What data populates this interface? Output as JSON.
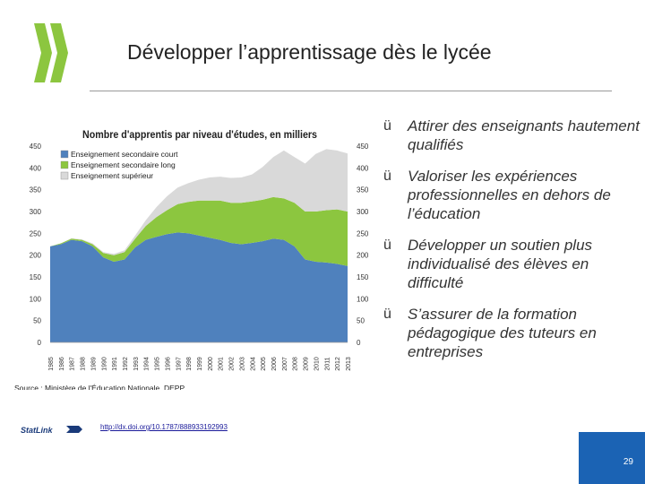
{
  "slide": {
    "title": "Développer l’apprentissage dès le lycée",
    "page_number": "29",
    "statlink_url": "http://dx.doi.org/10.1787/888933192993",
    "statlink_logo_text": "StatLink"
  },
  "colors": {
    "logo_green": "#8cc63f",
    "series_court": "#4f81bd",
    "series_long": "#8cc63f",
    "series_superieur": "#d9d9d9",
    "badge_blue": "#1b63b4"
  },
  "bullets": [
    "Attirer des enseignants hautement qualifiés",
    "Valoriser les expériences professionnelles en dehors de l’éducation",
    "Développer un soutien plus individualisé des élèves en difficulté",
    "S’assurer de la formation pédagogique des tuteurs en entreprises"
  ],
  "bullet_check": "ü",
  "chart_data": {
    "type": "area",
    "stacked": true,
    "title": "Nombre d'apprentis par niveau d'études, en milliers",
    "source": "Source : Ministère de l'Éducation Nationale, DEPP.",
    "x": [
      "1985",
      "1986",
      "1987",
      "1988",
      "1989",
      "1990",
      "1991",
      "1992",
      "1993",
      "1994",
      "1995",
      "1996",
      "1997",
      "1998",
      "1999",
      "2000",
      "2001",
      "2002",
      "2003",
      "2004",
      "2005",
      "2006",
      "2007",
      "2008",
      "2009",
      "2010",
      "2011",
      "2012",
      "2013"
    ],
    "series": [
      {
        "name": "Enseignement secondaire court",
        "values": [
          220,
          225,
          235,
          232,
          220,
          195,
          185,
          190,
          218,
          235,
          242,
          248,
          252,
          250,
          245,
          240,
          235,
          228,
          225,
          228,
          232,
          238,
          235,
          220,
          190,
          185,
          183,
          180,
          175
        ]
      },
      {
        "name": "Enseignement secondaire long",
        "values": [
          0,
          2,
          3,
          3,
          5,
          10,
          15,
          17,
          20,
          32,
          45,
          55,
          65,
          72,
          80,
          85,
          90,
          92,
          95,
          95,
          95,
          95,
          95,
          100,
          110,
          115,
          120,
          125,
          125
        ]
      },
      {
        "name": "Enseignement supérieur",
        "values": [
          0,
          0,
          1,
          1,
          2,
          2,
          3,
          4,
          7,
          13,
          23,
          32,
          38,
          43,
          48,
          53,
          55,
          57,
          58,
          62,
          75,
          92,
          110,
          105,
          110,
          132,
          140,
          135,
          133
        ]
      }
    ],
    "ylim": [
      0,
      450
    ],
    "yticks": [
      0,
      50,
      100,
      150,
      200,
      250,
      300,
      350,
      400,
      450
    ],
    "legend_position": "top-left",
    "grid": false,
    "secondary_y_axis": true
  }
}
